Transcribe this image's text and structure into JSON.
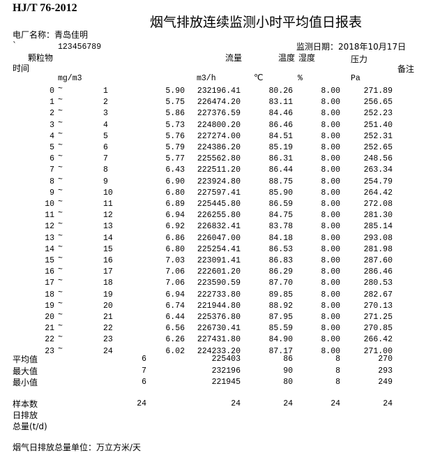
{
  "standard": "HJ/T 76-2012",
  "title": "烟气排放连续监测小时平均值日报表",
  "plant_label": "电厂名称：青岛佳明",
  "mark": "`",
  "plant_code": "123456789",
  "date_label": "监测日期：2018年10月17日",
  "headers": {
    "pm": "颗粒物",
    "flow": "流量",
    "temp": "温度",
    "humidity": "湿度",
    "pressure": "压力",
    "time": "时间",
    "remark": "备注"
  },
  "units": {
    "pm": "mg/m3",
    "flow": "m3/h",
    "temp": "℃",
    "humidity": "%",
    "pressure": "Pa"
  },
  "tilde": "~",
  "rows": [
    [
      "0",
      "1",
      "5.90",
      "232196.41",
      "80.26",
      "8.00",
      "271.89"
    ],
    [
      "1",
      "2",
      "5.75",
      "226474.20",
      "83.11",
      "8.00",
      "256.65"
    ],
    [
      "2",
      "3",
      "5.86",
      "227376.59",
      "84.46",
      "8.00",
      "252.23"
    ],
    [
      "3",
      "4",
      "5.73",
      "224800.20",
      "86.46",
      "8.00",
      "251.40"
    ],
    [
      "4",
      "5",
      "5.76",
      "227274.00",
      "84.51",
      "8.00",
      "252.31"
    ],
    [
      "5",
      "6",
      "5.79",
      "224386.20",
      "85.19",
      "8.00",
      "252.65"
    ],
    [
      "6",
      "7",
      "5.77",
      "225562.80",
      "86.31",
      "8.00",
      "248.56"
    ],
    [
      "7",
      "8",
      "6.43",
      "222511.20",
      "86.44",
      "8.00",
      "263.34"
    ],
    [
      "8",
      "9",
      "6.90",
      "223924.80",
      "88.75",
      "8.00",
      "254.79"
    ],
    [
      "9",
      "10",
      "6.80",
      "227597.41",
      "85.90",
      "8.00",
      "264.42"
    ],
    [
      "10",
      "11",
      "6.89",
      "225445.80",
      "86.59",
      "8.00",
      "272.08"
    ],
    [
      "11",
      "12",
      "6.94",
      "226255.80",
      "84.75",
      "8.00",
      "281.30"
    ],
    [
      "12",
      "13",
      "6.92",
      "226832.41",
      "83.78",
      "8.00",
      "285.14"
    ],
    [
      "13",
      "14",
      "6.86",
      "226047.00",
      "84.18",
      "8.00",
      "293.08"
    ],
    [
      "14",
      "15",
      "6.80",
      "225254.41",
      "86.53",
      "8.00",
      "281.98"
    ],
    [
      "15",
      "16",
      "7.03",
      "223091.41",
      "86.83",
      "8.00",
      "287.60"
    ],
    [
      "16",
      "17",
      "7.06",
      "222601.20",
      "86.29",
      "8.00",
      "286.46"
    ],
    [
      "17",
      "18",
      "7.06",
      "223590.59",
      "87.70",
      "8.00",
      "280.53"
    ],
    [
      "18",
      "19",
      "6.94",
      "222733.80",
      "89.85",
      "8.00",
      "282.67"
    ],
    [
      "19",
      "20",
      "6.74",
      "221944.80",
      "88.92",
      "8.00",
      "270.13"
    ],
    [
      "20",
      "21",
      "6.44",
      "225376.80",
      "87.95",
      "8.00",
      "271.25"
    ],
    [
      "21",
      "22",
      "6.56",
      "226730.41",
      "85.59",
      "8.00",
      "270.85"
    ],
    [
      "22",
      "23",
      "6.26",
      "227431.80",
      "84.90",
      "8.00",
      "266.42"
    ],
    [
      "23",
      "24",
      "6.02",
      "224233.20",
      "87.17",
      "8.00",
      "271.00"
    ]
  ],
  "stats": [
    {
      "label": "平均值",
      "values": [
        "6",
        "225403",
        "86",
        "8",
        "270"
      ]
    },
    {
      "label": "最大值",
      "values": [
        "7",
        "232196",
        "90",
        "8",
        "293"
      ]
    },
    {
      "label": "最小值",
      "values": [
        "6",
        "221945",
        "80",
        "8",
        "249"
      ]
    }
  ],
  "sample": {
    "label": "样本数",
    "values": [
      "24",
      "24",
      "24",
      "24",
      "24"
    ]
  },
  "daily_label": "日排放",
  "total_label": "总量(t/d)",
  "footer": "烟气日排放总量单位：万立方米/天"
}
